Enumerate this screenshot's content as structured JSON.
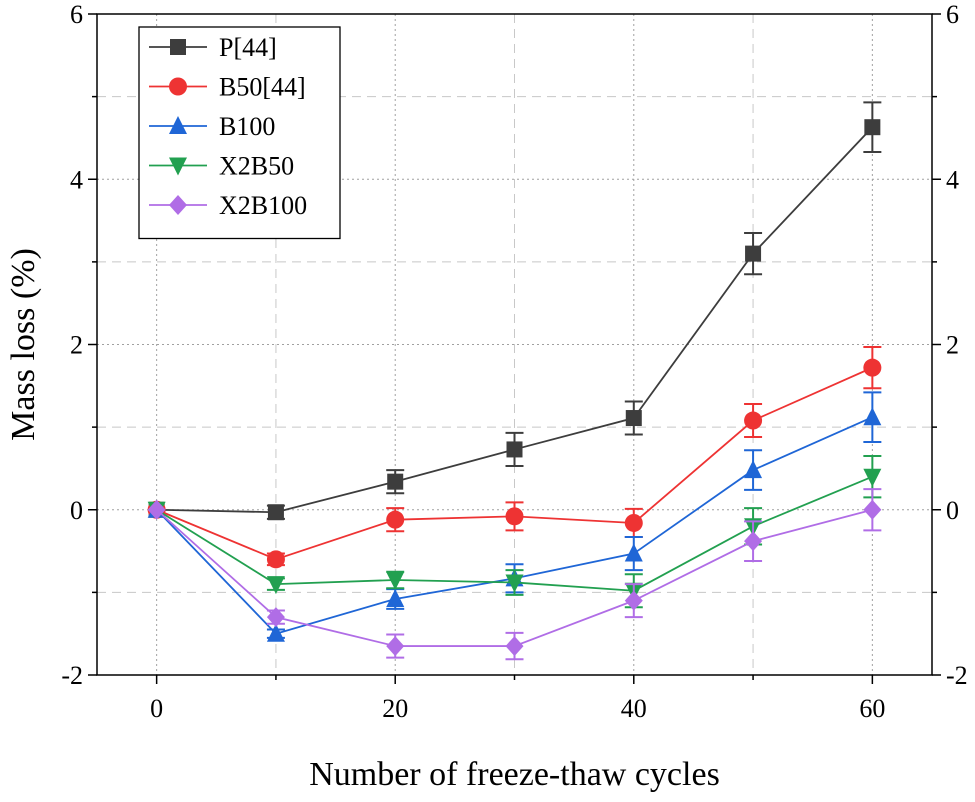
{
  "chart_data": {
    "type": "line",
    "title": "",
    "xlabel": "Number of freeze-thaw cycles",
    "ylabel": "Mass loss (%)",
    "xlim": [
      -5,
      65
    ],
    "ylim": [
      -2,
      6
    ],
    "xticks": [
      0,
      20,
      40,
      60
    ],
    "yticks": [
      -2,
      0,
      2,
      4,
      6
    ],
    "x": [
      0,
      10,
      20,
      30,
      40,
      50,
      60
    ],
    "grid": true,
    "right_axis_mirror": true,
    "legend_position": "top-left",
    "series": [
      {
        "name": "P[44]",
        "color": "#3d3d3d",
        "marker": "square",
        "values": [
          0,
          -0.03,
          0.34,
          0.73,
          1.11,
          3.1,
          4.63
        ],
        "errors": [
          0,
          0.08,
          0.14,
          0.2,
          0.2,
          0.25,
          0.3
        ]
      },
      {
        "name": "B50[44]",
        "color": "#ee3333",
        "marker": "circle",
        "values": [
          0,
          -0.6,
          -0.12,
          -0.08,
          -0.16,
          1.08,
          1.72
        ],
        "errors": [
          0,
          0.07,
          0.14,
          0.17,
          0.17,
          0.2,
          0.25
        ]
      },
      {
        "name": "B100",
        "color": "#1f66d6",
        "marker": "triangle-up",
        "values": [
          0,
          -1.5,
          -1.08,
          -0.83,
          -0.53,
          0.48,
          1.12
        ],
        "errors": [
          0,
          0.05,
          0.12,
          0.17,
          0.2,
          0.24,
          0.3
        ]
      },
      {
        "name": "X2B50",
        "color": "#22a050",
        "marker": "triangle-down",
        "values": [
          0,
          -0.9,
          -0.85,
          -0.88,
          -0.98,
          -0.2,
          0.4
        ],
        "errors": [
          0,
          0.07,
          0.1,
          0.15,
          0.2,
          0.22,
          0.25
        ]
      },
      {
        "name": "X2B100",
        "color": "#b06de6",
        "marker": "diamond",
        "values": [
          0,
          -1.3,
          -1.65,
          -1.65,
          -1.1,
          -0.38,
          0.0
        ],
        "errors": [
          0,
          0.08,
          0.14,
          0.16,
          0.2,
          0.24,
          0.25
        ]
      }
    ]
  }
}
